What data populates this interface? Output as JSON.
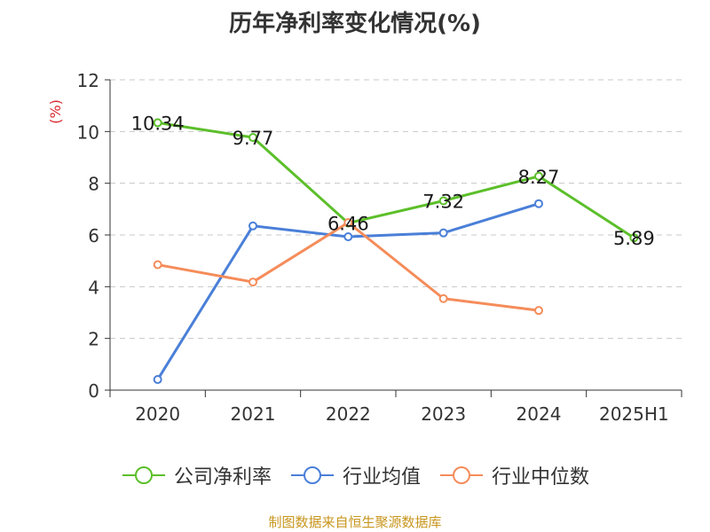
{
  "chart_data": {
    "type": "line",
    "title": "历年净利率变化情况(%)",
    "ylabel": "(%)",
    "categories": [
      "2020",
      "2021",
      "2022",
      "2023",
      "2024",
      "2025H1"
    ],
    "ylim": [
      0,
      12
    ],
    "yticks": [
      0,
      2,
      4,
      6,
      8,
      10,
      12
    ],
    "grid": true,
    "legend_position": "bottom",
    "series": [
      {
        "name": "公司净利率",
        "color": "#5cbf2a",
        "values": [
          10.34,
          9.77,
          6.46,
          7.32,
          8.27,
          5.89
        ],
        "labels": [
          "10.34",
          "9.77",
          "6.46",
          "7.32",
          "8.27",
          "5.89"
        ]
      },
      {
        "name": "行业均值",
        "color": "#4a7fd8",
        "values": [
          0.41,
          6.35,
          5.93,
          6.08,
          7.21,
          null
        ]
      },
      {
        "name": "行业中位数",
        "color": "#f58c5a",
        "values": [
          4.85,
          4.18,
          6.48,
          3.54,
          3.08,
          null
        ]
      }
    ]
  },
  "source": "制图数据来自恒生聚源数据库"
}
